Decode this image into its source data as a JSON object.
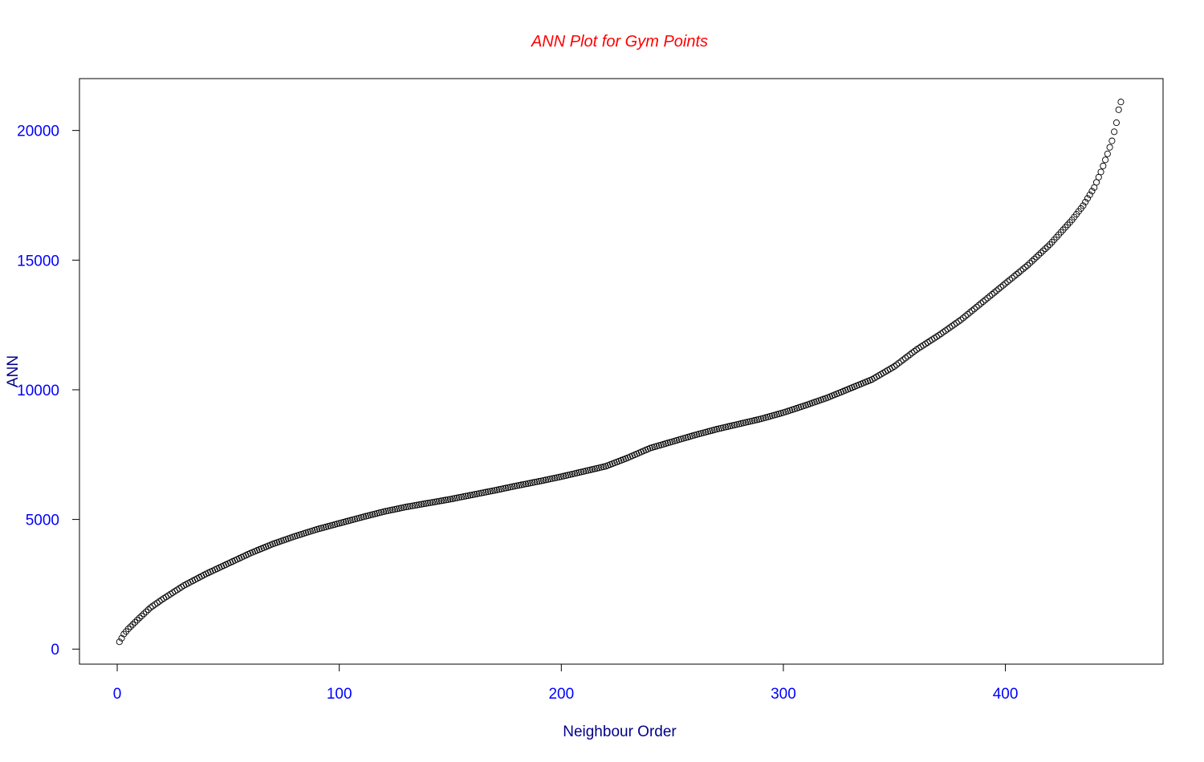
{
  "chart_data": {
    "type": "scatter",
    "title": "ANN Plot for Gym Points",
    "xlabel": "Neighbour Order",
    "ylabel": "ANN",
    "xlim": [
      -17,
      471
    ],
    "ylim": [
      -580,
      22000
    ],
    "x_ticks": [
      0,
      100,
      200,
      300,
      400
    ],
    "x_tick_labels": [
      "0",
      "100",
      "200",
      "300",
      "400"
    ],
    "y_ticks": [
      0,
      5000,
      10000,
      15000,
      20000
    ],
    "y_tick_labels": [
      "0",
      "5000",
      "10000",
      "15000",
      "20000"
    ],
    "grid": false,
    "colors": {
      "title": "#ff0000",
      "tick_labels": "#0000ff",
      "axis_titles": "#00008b",
      "points": "#000000",
      "frame": "#000000"
    },
    "series": [
      {
        "marker": "open-circle",
        "n_points": 452,
        "x_start": 1,
        "x_step": 1,
        "curve_knots": [
          [
            1,
            280
          ],
          [
            2,
            420
          ],
          [
            3,
            580
          ],
          [
            5,
            780
          ],
          [
            10,
            1200
          ],
          [
            15,
            1600
          ],
          [
            20,
            1900
          ],
          [
            30,
            2450
          ],
          [
            40,
            2900
          ],
          [
            50,
            3300
          ],
          [
            60,
            3700
          ],
          [
            70,
            4050
          ],
          [
            80,
            4350
          ],
          [
            90,
            4620
          ],
          [
            100,
            4850
          ],
          [
            110,
            5080
          ],
          [
            120,
            5300
          ],
          [
            130,
            5480
          ],
          [
            140,
            5630
          ],
          [
            150,
            5780
          ],
          [
            160,
            5950
          ],
          [
            170,
            6120
          ],
          [
            180,
            6300
          ],
          [
            190,
            6470
          ],
          [
            200,
            6650
          ],
          [
            210,
            6850
          ],
          [
            220,
            7050
          ],
          [
            230,
            7380
          ],
          [
            240,
            7750
          ],
          [
            250,
            8000
          ],
          [
            260,
            8250
          ],
          [
            270,
            8480
          ],
          [
            280,
            8680
          ],
          [
            290,
            8880
          ],
          [
            300,
            9120
          ],
          [
            310,
            9400
          ],
          [
            320,
            9700
          ],
          [
            330,
            10050
          ],
          [
            340,
            10400
          ],
          [
            350,
            10900
          ],
          [
            360,
            11550
          ],
          [
            370,
            12100
          ],
          [
            380,
            12700
          ],
          [
            390,
            13400
          ],
          [
            400,
            14100
          ],
          [
            410,
            14800
          ],
          [
            420,
            15600
          ],
          [
            430,
            16550
          ],
          [
            435,
            17100
          ],
          [
            440,
            17800
          ],
          [
            443,
            18400
          ],
          [
            446,
            19100
          ],
          [
            448,
            19600
          ],
          [
            450,
            20300
          ],
          [
            451,
            20800
          ],
          [
            452,
            21100
          ]
        ]
      }
    ]
  }
}
